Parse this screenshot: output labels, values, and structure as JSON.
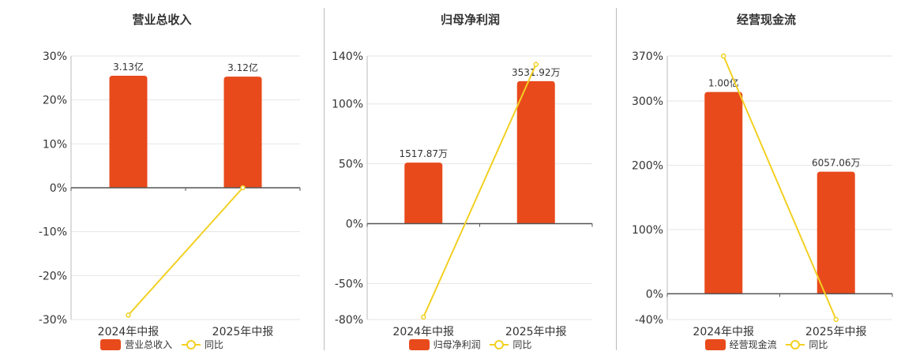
{
  "colors": {
    "bar": "#e84a1c",
    "line": "#f2d022",
    "axis": "#555555",
    "grid": "#e6e6e6"
  },
  "chart_data": [
    {
      "type": "bar",
      "title": "营业总收入",
      "categories": [
        "2024年中报",
        "2025年中报"
      ],
      "series": [
        {
          "name": "营业总收入",
          "type": "bar",
          "axis": "left",
          "labels": [
            "3.13亿",
            "3.12亿"
          ]
        },
        {
          "name": "同比",
          "type": "line",
          "axis": "left",
          "values": [
            -29,
            0
          ]
        }
      ],
      "bar_heights": [
        25.5,
        25.3
      ],
      "yticks": [
        30,
        20,
        10,
        0,
        -10,
        -20,
        -30
      ],
      "ytick_labels": [
        "30%",
        "20%",
        "10%",
        "0%",
        "-10%",
        "-20%",
        "-30%"
      ],
      "ylim": [
        -30,
        30
      ],
      "grid": true,
      "legend": "bottom"
    },
    {
      "type": "bar",
      "title": "归母净利润",
      "categories": [
        "2024年中报",
        "2025年中报"
      ],
      "series": [
        {
          "name": "归母净利润",
          "type": "bar",
          "axis": "left",
          "labels": [
            "1517.87万",
            "3531.92万"
          ]
        },
        {
          "name": "同比",
          "type": "line",
          "axis": "left",
          "values": [
            -78,
            133
          ]
        }
      ],
      "bar_heights": [
        51,
        119
      ],
      "yticks": [
        140,
        100,
        50,
        0,
        -50,
        -80
      ],
      "ytick_labels": [
        "140%",
        "100%",
        "50%",
        "0%",
        "-50%",
        "-80%"
      ],
      "ylim": [
        -80,
        140
      ],
      "grid": true,
      "legend": "bottom"
    },
    {
      "type": "bar",
      "title": "经营现金流",
      "categories": [
        "2024年中报",
        "2025年中报"
      ],
      "series": [
        {
          "name": "经营现金流",
          "type": "bar",
          "axis": "left",
          "labels": [
            "1.00亿",
            "6057.06万"
          ]
        },
        {
          "name": "同比",
          "type": "line",
          "axis": "left",
          "values": [
            370,
            -40
          ]
        }
      ],
      "bar_heights": [
        314,
        190
      ],
      "yticks": [
        370,
        300,
        200,
        100,
        0,
        -40
      ],
      "ytick_labels": [
        "370%",
        "300%",
        "200%",
        "100%",
        "0%",
        "-40%"
      ],
      "ylim": [
        -40,
        370
      ],
      "grid": true,
      "legend": "bottom"
    }
  ]
}
